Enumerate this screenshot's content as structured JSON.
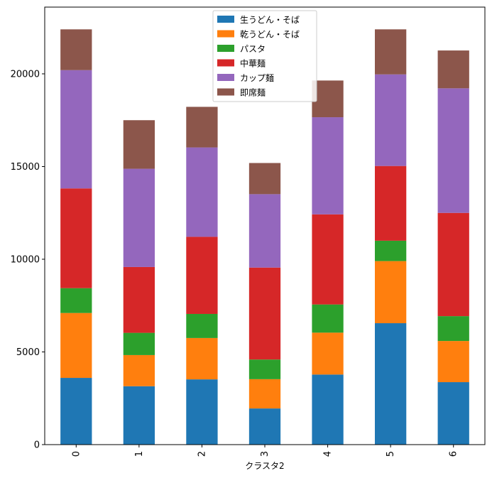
{
  "chart_data": {
    "type": "bar",
    "stacked": true,
    "title": "",
    "xlabel": "クラスタ2",
    "ylabel": "",
    "categories": [
      "0",
      "1",
      "2",
      "3",
      "4",
      "5",
      "6"
    ],
    "ylim": [
      0,
      23600
    ],
    "yticks": [
      0,
      5000,
      10000,
      15000,
      20000
    ],
    "legend_position": "top-center",
    "series": [
      {
        "name": "生うどん・そば",
        "color": "#1f77b4",
        "values": [
          3600,
          3150,
          3520,
          1950,
          3780,
          6550,
          3370
        ]
      },
      {
        "name": "乾うどん・そば",
        "color": "#ff7f0e",
        "values": [
          3500,
          1680,
          2230,
          1580,
          2260,
          3350,
          2220
        ]
      },
      {
        "name": "パスタ",
        "color": "#2ca02c",
        "values": [
          1340,
          1200,
          1300,
          1060,
          1520,
          1100,
          1340
        ]
      },
      {
        "name": "中華麺",
        "color": "#d62728",
        "values": [
          5380,
          3550,
          4160,
          4960,
          4860,
          4030,
          5570
        ]
      },
      {
        "name": "カップ麺",
        "color": "#9467bd",
        "values": [
          6380,
          5300,
          4820,
          3960,
          5240,
          4940,
          6720
        ]
      },
      {
        "name": "即席麺",
        "color": "#8c564b",
        "values": [
          2200,
          2620,
          2190,
          1680,
          1980,
          2430,
          2040
        ]
      }
    ]
  }
}
